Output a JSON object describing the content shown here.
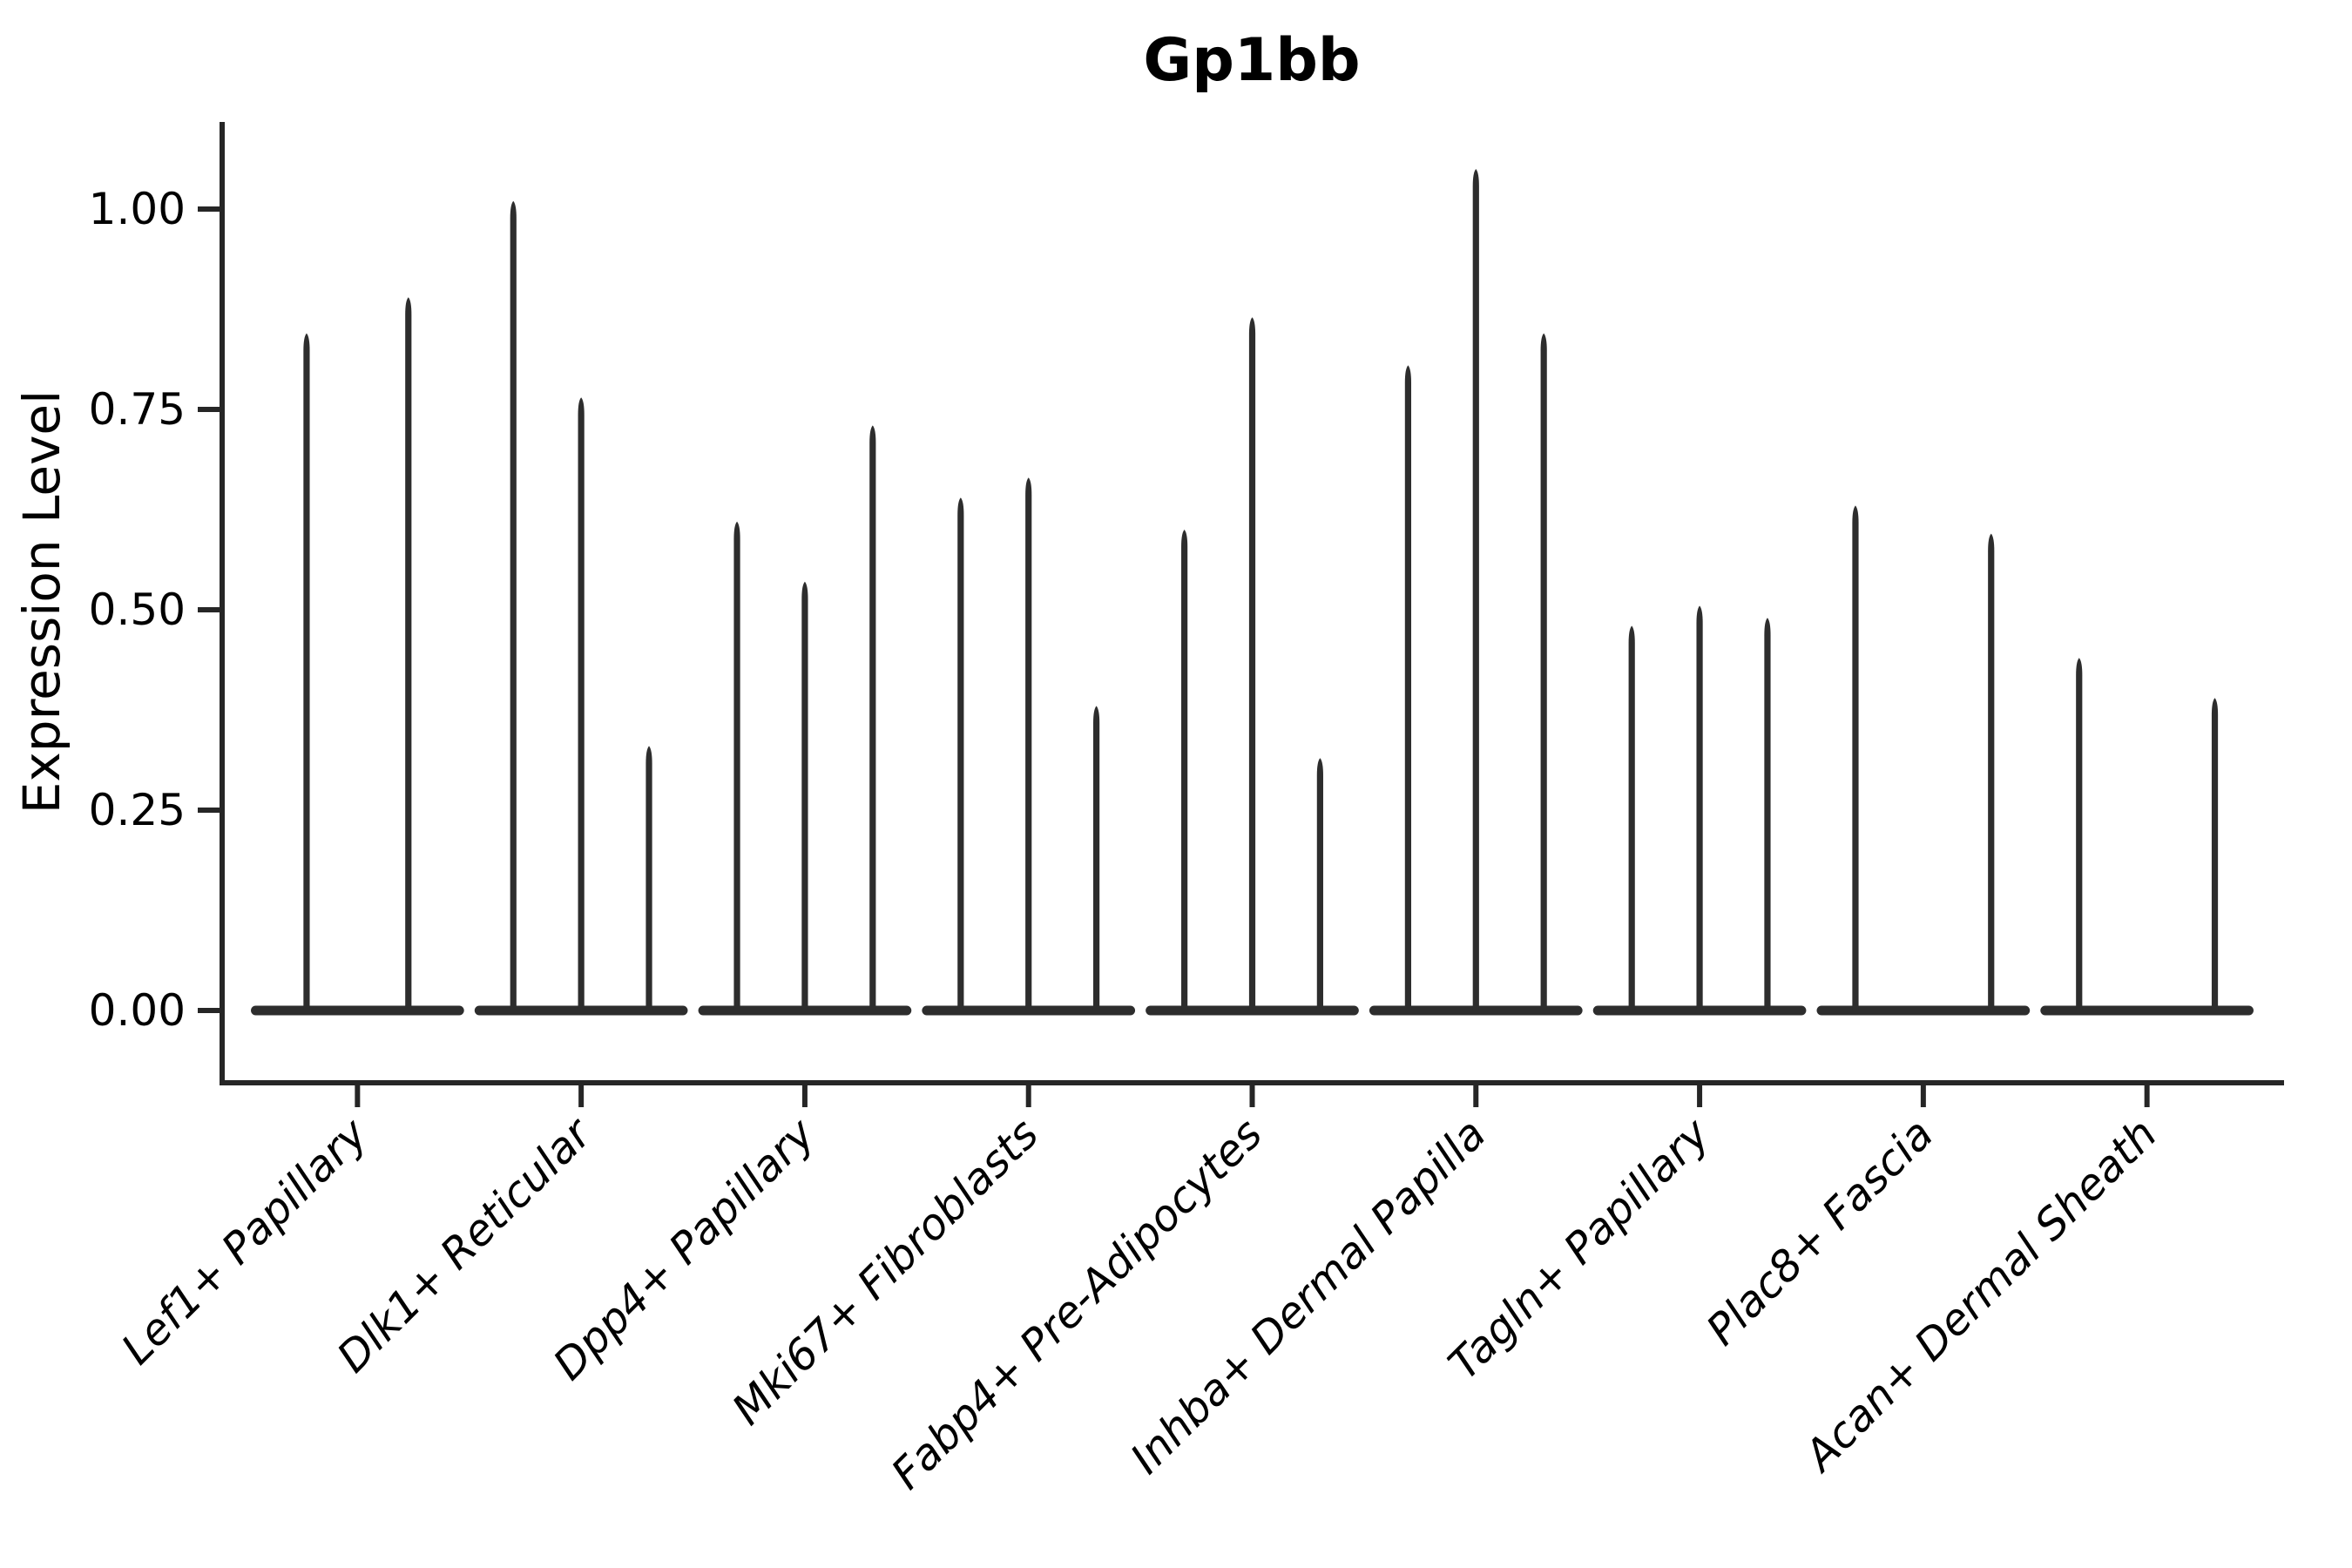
{
  "figure": {
    "title": "Gp1bb",
    "ylabel": "Expression Level",
    "background_color": "#ffffff",
    "line_color": "#262626",
    "violin_color": "#2d2d2d",
    "text_color": "#000000"
  },
  "chart_data": {
    "type": "violin",
    "title": "Gp1bb",
    "xlabel": "",
    "ylabel": "Expression Level",
    "ylim": [
      -0.09,
      1.11
    ],
    "ytick_values": [
      0.0,
      0.25,
      0.5,
      0.75,
      1.0
    ],
    "ytick_labels": [
      "0.00",
      "0.25",
      "0.50",
      "0.75",
      "1.00"
    ],
    "grid": false,
    "legend_position": "none",
    "categories": [
      "Lef1+ Papillary",
      "Dlk1+ Reticular",
      "Dpp4+ Papillary",
      "Mki67+ Fibroblasts",
      "Fabp4+ Pre-Adipocytes",
      "Inhba+ Dermal Papilla",
      "Tagln+ Papillary",
      "Plac8+ Fascia",
      "Acan+ Dermal Sheath"
    ],
    "groups": [
      {
        "category": "Lef1+ Papillary",
        "violins": [
          {
            "pos": 0.25,
            "peak": 0.845
          },
          {
            "pos": 0.75,
            "peak": 0.89
          }
        ]
      },
      {
        "category": "Dlk1+ Reticular",
        "violins": [
          {
            "pos": 0.1667,
            "peak": 1.01
          },
          {
            "pos": 0.5,
            "peak": 0.765
          },
          {
            "pos": 0.8333,
            "peak": 0.33
          }
        ]
      },
      {
        "category": "Dpp4+ Papillary",
        "violins": [
          {
            "pos": 0.1667,
            "peak": 0.61
          },
          {
            "pos": 0.5,
            "peak": 0.535
          },
          {
            "pos": 0.8333,
            "peak": 0.73
          }
        ]
      },
      {
        "category": "Mki67+ Fibroblasts",
        "violins": [
          {
            "pos": 0.1667,
            "peak": 0.64
          },
          {
            "pos": 0.5,
            "peak": 0.665
          },
          {
            "pos": 0.8333,
            "peak": 0.38
          }
        ]
      },
      {
        "category": "Fabp4+ Pre-Adipocytes",
        "violins": [
          {
            "pos": 0.1667,
            "peak": 0.6
          },
          {
            "pos": 0.5,
            "peak": 0.865
          },
          {
            "pos": 0.8333,
            "peak": 0.315
          }
        ]
      },
      {
        "category": "Inhba+ Dermal Papilla",
        "violins": [
          {
            "pos": 0.1667,
            "peak": 0.805
          },
          {
            "pos": 0.5,
            "peak": 1.05
          },
          {
            "pos": 0.8333,
            "peak": 0.845
          }
        ]
      },
      {
        "category": "Tagln+ Papillary",
        "violins": [
          {
            "pos": 0.1667,
            "peak": 0.48
          },
          {
            "pos": 0.5,
            "peak": 0.505
          },
          {
            "pos": 0.8333,
            "peak": 0.49
          }
        ]
      },
      {
        "category": "Plac8+ Fascia",
        "violins": [
          {
            "pos": 0.1667,
            "peak": 0.63
          },
          {
            "pos": 0.8333,
            "peak": 0.595
          }
        ]
      },
      {
        "category": "Acan+ Dermal Sheath",
        "violins": [
          {
            "pos": 0.1667,
            "peak": 0.44
          },
          {
            "pos": 0.8333,
            "peak": 0.39
          }
        ]
      }
    ]
  }
}
